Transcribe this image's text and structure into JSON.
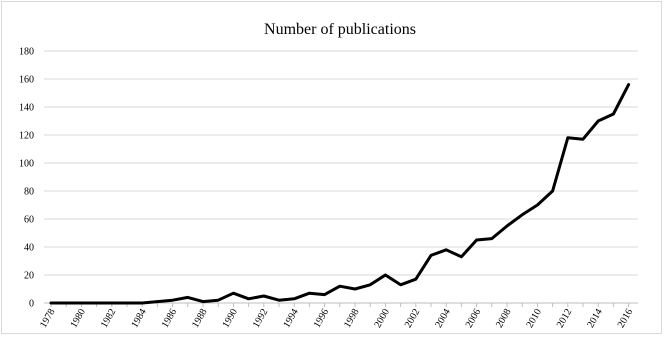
{
  "chart_data": {
    "type": "line",
    "title": "Number of publications",
    "xlabel": "",
    "ylabel": "",
    "ylim": [
      0,
      180
    ],
    "y_ticks": [
      0,
      20,
      40,
      60,
      80,
      100,
      120,
      140,
      160,
      180
    ],
    "x_tick_labels": [
      "1978",
      "1980",
      "1982",
      "1984",
      "1986",
      "1988",
      "1990",
      "1992",
      "1994",
      "1996",
      "1998",
      "2000",
      "2002",
      "2004",
      "2006",
      "2008",
      "2010",
      "2012",
      "2014",
      "2016"
    ],
    "grid": "horizontal",
    "legend": "none",
    "line_color": "#000000",
    "x": [
      1978,
      1979,
      1980,
      1981,
      1982,
      1983,
      1984,
      1985,
      1986,
      1987,
      1988,
      1989,
      1990,
      1991,
      1992,
      1993,
      1994,
      1995,
      1996,
      1997,
      1998,
      1999,
      2000,
      2001,
      2002,
      2003,
      2004,
      2005,
      2006,
      2007,
      2008,
      2009,
      2010,
      2011,
      2012,
      2013,
      2014,
      2015,
      2016
    ],
    "values": [
      0,
      0,
      0,
      0,
      0,
      0,
      0,
      1,
      2,
      4,
      1,
      2,
      7,
      3,
      5,
      2,
      3,
      7,
      6,
      12,
      10,
      13,
      20,
      13,
      17,
      34,
      38,
      33,
      45,
      46,
      55,
      63,
      70,
      80,
      118,
      117,
      130,
      135,
      156
    ]
  }
}
